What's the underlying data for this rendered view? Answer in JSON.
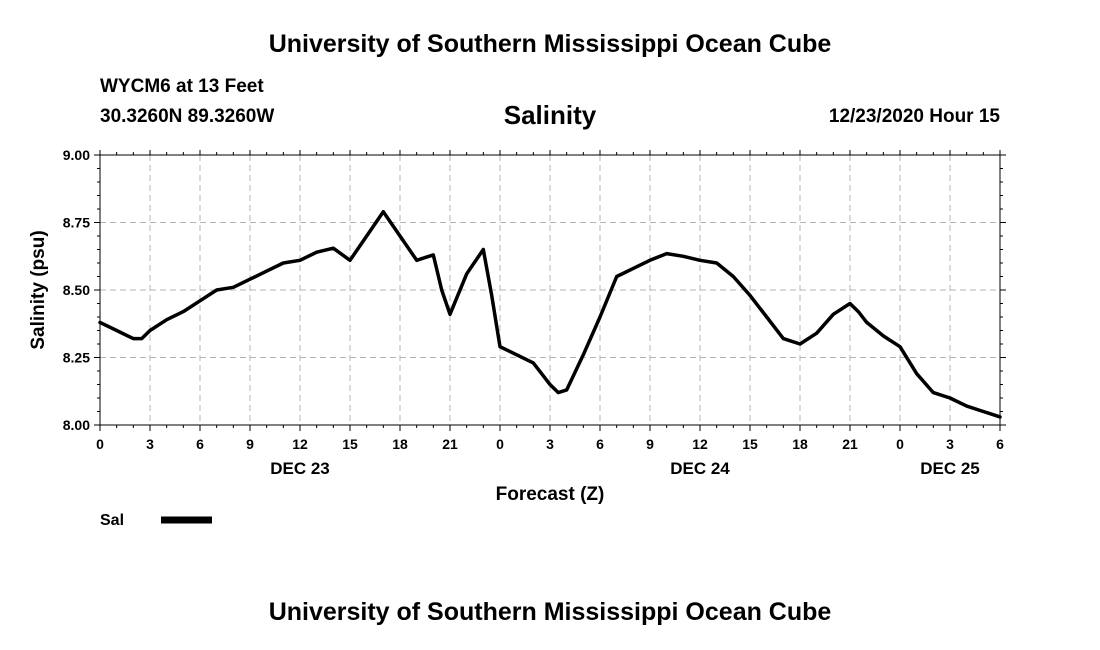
{
  "header": {
    "title": "University of Southern Mississippi Ocean Cube",
    "station": "WYCM6 at 13 Feet",
    "coords": "30.3260N 89.3260W",
    "datetime": "12/23/2020 Hour 15"
  },
  "footer": {
    "title": "University of Southern Mississippi Ocean Cube"
  },
  "chart_data": {
    "type": "line",
    "title": "Salinity",
    "xlabel": "Forecast (Z)",
    "ylabel": "Salinity (psu)",
    "x_unit": "hours from 00Z DEC 23",
    "xlim": [
      0,
      54
    ],
    "ylim": [
      8.0,
      9.0
    ],
    "xticks": [
      0,
      3,
      6,
      9,
      12,
      15,
      18,
      21,
      24,
      27,
      30,
      33,
      36,
      39,
      42,
      45,
      48,
      51,
      54
    ],
    "xtick_labels": [
      "0",
      "3",
      "6",
      "9",
      "12",
      "15",
      "18",
      "21",
      "0",
      "3",
      "6",
      "9",
      "12",
      "15",
      "18",
      "21",
      "0",
      "3",
      "6"
    ],
    "yticks": [
      8.0,
      8.25,
      8.5,
      8.75,
      9.0
    ],
    "ytick_labels": [
      "8.00",
      "8.25",
      "8.50",
      "8.75",
      "9.00"
    ],
    "day_labels": [
      {
        "label": "DEC 23",
        "x": 12
      },
      {
        "label": "DEC 24",
        "x": 36
      },
      {
        "label": "DEC 25",
        "x": 51
      }
    ],
    "grid": true,
    "legend": "bottom-left",
    "colors": {
      "line": "#000000",
      "grid": "#b4b4b4"
    },
    "series": [
      {
        "name": "Sal",
        "x": [
          0,
          1,
          2,
          2.5,
          3,
          4,
          5,
          6,
          7,
          8,
          9,
          10,
          11,
          12,
          13,
          14,
          15,
          16,
          17,
          18,
          19,
          19.5,
          20,
          20.5,
          21,
          22,
          23,
          23.5,
          24,
          25,
          26,
          27,
          27.5,
          28,
          29,
          30,
          31,
          32,
          33,
          34,
          35,
          36,
          37,
          38,
          39,
          40,
          41,
          42,
          43,
          44,
          45,
          45.5,
          46,
          47,
          48,
          49,
          50,
          51,
          52,
          53,
          53.5,
          54
        ],
        "values": [
          8.38,
          8.35,
          8.32,
          8.32,
          8.35,
          8.39,
          8.42,
          8.46,
          8.5,
          8.51,
          8.54,
          8.57,
          8.6,
          8.61,
          8.64,
          8.655,
          8.61,
          8.7,
          8.79,
          8.7,
          8.61,
          8.62,
          8.63,
          8.5,
          8.41,
          8.56,
          8.65,
          8.48,
          8.29,
          8.26,
          8.23,
          8.15,
          8.12,
          8.13,
          8.26,
          8.4,
          8.55,
          8.58,
          8.61,
          8.635,
          8.625,
          8.61,
          8.6,
          8.55,
          8.48,
          8.4,
          8.32,
          8.3,
          8.34,
          8.41,
          8.45,
          8.42,
          8.38,
          8.33,
          8.29,
          8.19,
          8.12,
          8.1,
          8.07,
          8.05,
          8.04,
          8.03
        ]
      }
    ]
  }
}
